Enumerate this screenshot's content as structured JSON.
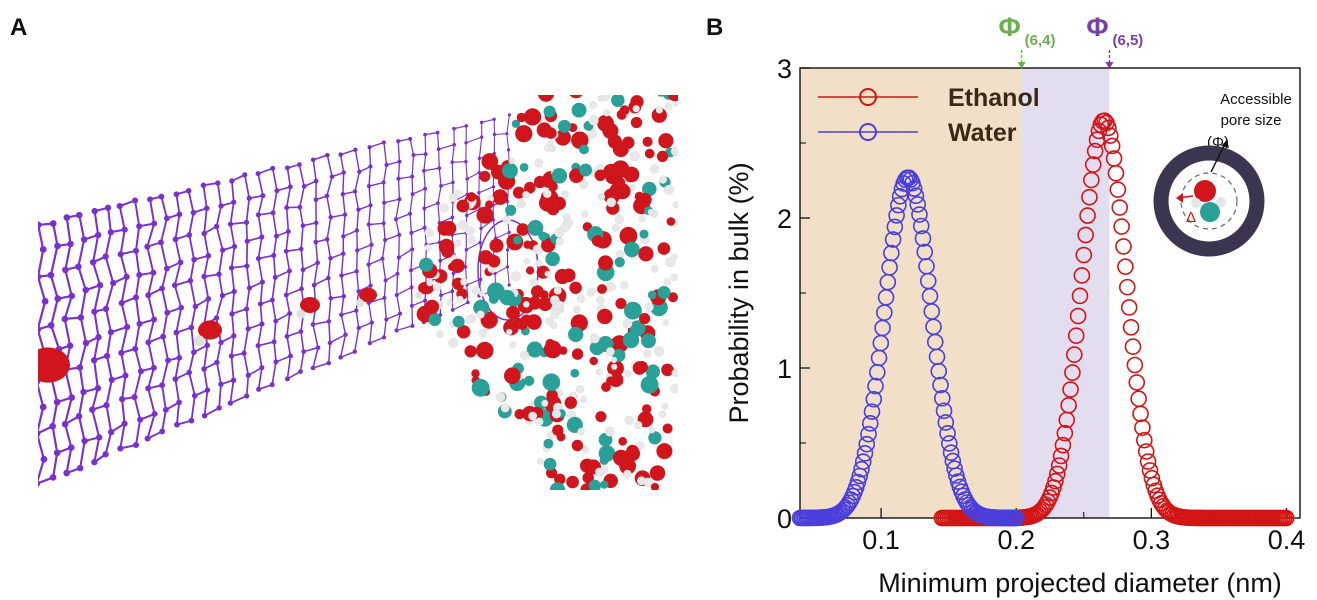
{
  "panels": {
    "a_label": "A",
    "b_label": "B"
  },
  "colors": {
    "ethanol": "#d31414",
    "water": "#4a3fdc",
    "region_64": "#f1dfc8",
    "region_65": "#e3ddf0",
    "phi64": "#6ab04c",
    "phi65": "#7b3fa8",
    "nanotube": "#7a2fd0"
  },
  "chart_data": {
    "type": "scatter",
    "xlabel": "Minimum projected diameter (nm)",
    "ylabel": "Probability in bulk (%)",
    "xlim": [
      0.04,
      0.41
    ],
    "ylim": [
      0,
      3
    ],
    "xticks": [
      0.1,
      0.2,
      0.3,
      0.4
    ],
    "xtick_labels": [
      "0.1",
      "0.2",
      "0.3",
      "0.4"
    ],
    "yticks": [
      0,
      1,
      2,
      3
    ],
    "ytick_labels": [
      "0",
      "1",
      "2",
      "3"
    ],
    "legend_position": "top-left",
    "series": [
      {
        "name": "Ethanol",
        "color": "#d31414",
        "peak_x": 0.265,
        "peak_y": 2.65,
        "sigma": 0.0165,
        "x_start": 0.145,
        "x_end": 0.4,
        "step": 0.0014
      },
      {
        "name": "Water",
        "color": "#4a3fdc",
        "peak_x": 0.12,
        "peak_y": 2.27,
        "sigma": 0.0175,
        "x_start": 0.04,
        "x_end": 0.2,
        "step": 0.0013
      }
    ],
    "shaded_regions": [
      {
        "x0": 0.04,
        "x1": 0.204,
        "color": "#f1dfc8"
      },
      {
        "x0": 0.204,
        "x1": 0.269,
        "color": "#e3ddf0"
      }
    ],
    "markers": [
      {
        "label": "Φ",
        "subscript": "(6,4)",
        "x": 0.204,
        "color": "#6ab04c"
      },
      {
        "label": "Φ",
        "subscript": "(6,5)",
        "x": 0.269,
        "color": "#7b3fa8"
      }
    ],
    "inset": {
      "text_line1": "Accessible",
      "text_line2": "pore size",
      "phi_label": "(Φ)",
      "delta_label": "Δ"
    }
  }
}
